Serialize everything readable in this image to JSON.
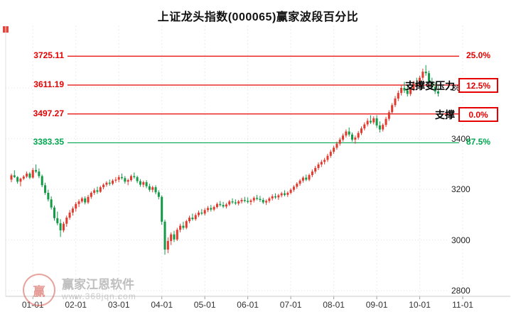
{
  "title": "上证龙头指数(000065)赢家波段百分比",
  "watermark": {
    "brand": "赢家江恩软件",
    "url": "www.368jqn.com",
    "seal_char": "赢"
  },
  "chart_data": {
    "type": "candlestick",
    "title": "上证龙头指数(000065)赢家波段百分比",
    "x_ticks": [
      "01-01",
      "02-01",
      "03-01",
      "04-01",
      "05-01",
      "06-01",
      "07-01",
      "08-01",
      "09-01",
      "10-01",
      "11-01"
    ],
    "y_ticks": [
      3600,
      3400,
      3200,
      3000,
      2800
    ],
    "ylim": [
      2800,
      3760
    ],
    "grid": true,
    "colors": {
      "up": "#e23a2e",
      "down": "#149a47",
      "level_red": "#e60000",
      "level_green": "#00a84f"
    },
    "levels": [
      {
        "price": 3725.11,
        "price_label": "3725.11",
        "percent": "25.0%",
        "color": "#e60000",
        "boxed": false,
        "tag": ""
      },
      {
        "price": 3611.19,
        "price_label": "3611.19",
        "percent": "12.5%",
        "color": "#e60000",
        "boxed": true,
        "tag": "支撑变压力"
      },
      {
        "price": 3497.27,
        "price_label": "3497.27",
        "percent": "0.0%",
        "color": "#e60000",
        "boxed": true,
        "tag": "支撑"
      },
      {
        "price": 3383.35,
        "price_label": "3383.35",
        "percent": "87.5%",
        "color": "#00a84f",
        "boxed": false,
        "tag": ""
      }
    ],
    "first_tick_candle_index": 7,
    "candles_per_month": 14,
    "candles": [
      [
        3238,
        3262,
        3228,
        3255
      ],
      [
        3255,
        3275,
        3245,
        3248
      ],
      [
        3248,
        3252,
        3222,
        3230
      ],
      [
        3230,
        3246,
        3212,
        3242
      ],
      [
        3242,
        3256,
        3236,
        3250
      ],
      [
        3250,
        3270,
        3244,
        3262
      ],
      [
        3262,
        3268,
        3240,
        3246
      ],
      [
        3246,
        3284,
        3242,
        3276
      ],
      [
        3276,
        3298,
        3264,
        3270
      ],
      [
        3270,
        3282,
        3244,
        3252
      ],
      [
        3252,
        3258,
        3208,
        3216
      ],
      [
        3216,
        3226,
        3178,
        3186
      ],
      [
        3186,
        3198,
        3152,
        3160
      ],
      [
        3160,
        3172,
        3120,
        3128
      ],
      [
        3128,
        3136,
        3076,
        3086
      ],
      [
        3086,
        3112,
        3058,
        3066
      ],
      [
        3066,
        3082,
        3012,
        3038
      ],
      [
        3038,
        3072,
        3030,
        3064
      ],
      [
        3064,
        3096,
        3052,
        3088
      ],
      [
        3088,
        3118,
        3080,
        3108
      ],
      [
        3108,
        3132,
        3096,
        3124
      ],
      [
        3124,
        3150,
        3112,
        3142
      ],
      [
        3142,
        3160,
        3130,
        3152
      ],
      [
        3152,
        3170,
        3146,
        3164
      ],
      [
        3164,
        3172,
        3140,
        3148
      ],
      [
        3148,
        3178,
        3142,
        3170
      ],
      [
        3170,
        3192,
        3162,
        3186
      ],
      [
        3186,
        3204,
        3178,
        3196
      ],
      [
        3196,
        3210,
        3182,
        3190
      ],
      [
        3190,
        3214,
        3186,
        3208
      ],
      [
        3208,
        3224,
        3200,
        3218
      ],
      [
        3218,
        3232,
        3210,
        3226
      ],
      [
        3226,
        3238,
        3214,
        3222
      ],
      [
        3222,
        3240,
        3216,
        3234
      ],
      [
        3234,
        3248,
        3226,
        3238
      ],
      [
        3238,
        3256,
        3228,
        3248
      ],
      [
        3248,
        3262,
        3238,
        3244
      ],
      [
        3244,
        3252,
        3222,
        3230
      ],
      [
        3230,
        3242,
        3216,
        3236
      ],
      [
        3236,
        3258,
        3230,
        3252
      ],
      [
        3252,
        3266,
        3242,
        3248
      ],
      [
        3248,
        3254,
        3224,
        3232
      ],
      [
        3232,
        3240,
        3210,
        3218
      ],
      [
        3218,
        3234,
        3208,
        3228
      ],
      [
        3228,
        3236,
        3204,
        3212
      ],
      [
        3212,
        3222,
        3190,
        3198
      ],
      [
        3198,
        3214,
        3188,
        3208
      ],
      [
        3208,
        3216,
        3180,
        3188
      ],
      [
        3188,
        3196,
        3160,
        3170
      ],
      [
        3170,
        3176,
        3060,
        3072
      ],
      [
        3072,
        3080,
        2942,
        2962
      ],
      [
        2962,
        3010,
        2948,
        2996
      ],
      [
        2996,
        3030,
        2980,
        3022
      ],
      [
        3022,
        3036,
        2992,
        3002
      ],
      [
        3002,
        3048,
        2996,
        3040
      ],
      [
        3040,
        3064,
        3030,
        3056
      ],
      [
        3056,
        3072,
        3040,
        3048
      ],
      [
        3048,
        3080,
        3042,
        3074
      ],
      [
        3074,
        3096,
        3066,
        3088
      ],
      [
        3088,
        3104,
        3076,
        3082
      ],
      [
        3082,
        3106,
        3076,
        3098
      ],
      [
        3098,
        3116,
        3090,
        3108
      ],
      [
        3108,
        3122,
        3098,
        3104
      ],
      [
        3104,
        3126,
        3096,
        3118
      ],
      [
        3118,
        3134,
        3110,
        3126
      ],
      [
        3126,
        3138,
        3112,
        3120
      ],
      [
        3120,
        3136,
        3114,
        3130
      ],
      [
        3130,
        3148,
        3124,
        3142
      ],
      [
        3142,
        3154,
        3132,
        3138
      ],
      [
        3138,
        3150,
        3126,
        3132
      ],
      [
        3132,
        3146,
        3124,
        3140
      ],
      [
        3140,
        3158,
        3134,
        3152
      ],
      [
        3152,
        3164,
        3142,
        3148
      ],
      [
        3148,
        3160,
        3138,
        3144
      ],
      [
        3144,
        3158,
        3136,
        3152
      ],
      [
        3152,
        3166,
        3144,
        3158
      ],
      [
        3158,
        3170,
        3148,
        3154
      ],
      [
        3154,
        3168,
        3144,
        3150
      ],
      [
        3150,
        3162,
        3138,
        3156
      ],
      [
        3156,
        3172,
        3148,
        3166
      ],
      [
        3166,
        3178,
        3156,
        3162
      ],
      [
        3162,
        3174,
        3150,
        3158
      ],
      [
        3158,
        3166,
        3142,
        3148
      ],
      [
        3148,
        3160,
        3138,
        3154
      ],
      [
        3154,
        3170,
        3146,
        3164
      ],
      [
        3164,
        3180,
        3156,
        3172
      ],
      [
        3172,
        3184,
        3162,
        3168
      ],
      [
        3168,
        3182,
        3158,
        3176
      ],
      [
        3176,
        3190,
        3168,
        3184
      ],
      [
        3184,
        3196,
        3172,
        3178
      ],
      [
        3178,
        3192,
        3170,
        3186
      ],
      [
        3186,
        3204,
        3180,
        3198
      ],
      [
        3198,
        3216,
        3190,
        3210
      ],
      [
        3210,
        3228,
        3202,
        3222
      ],
      [
        3222,
        3240,
        3214,
        3234
      ],
      [
        3234,
        3252,
        3226,
        3246
      ],
      [
        3246,
        3258,
        3232,
        3238
      ],
      [
        3238,
        3262,
        3232,
        3256
      ],
      [
        3256,
        3278,
        3248,
        3270
      ],
      [
        3270,
        3292,
        3262,
        3284
      ],
      [
        3284,
        3306,
        3276,
        3298
      ],
      [
        3298,
        3316,
        3288,
        3308
      ],
      [
        3308,
        3324,
        3298,
        3316
      ],
      [
        3316,
        3340,
        3308,
        3332
      ],
      [
        3332,
        3356,
        3324,
        3348
      ],
      [
        3348,
        3372,
        3340,
        3364
      ],
      [
        3364,
        3388,
        3356,
        3380
      ],
      [
        3380,
        3404,
        3372,
        3396
      ],
      [
        3396,
        3420,
        3388,
        3412
      ],
      [
        3412,
        3436,
        3404,
        3428
      ],
      [
        3428,
        3444,
        3408,
        3416
      ],
      [
        3416,
        3424,
        3388,
        3396
      ],
      [
        3396,
        3412,
        3380,
        3404
      ],
      [
        3404,
        3430,
        3396,
        3422
      ],
      [
        3422,
        3448,
        3414,
        3440
      ],
      [
        3440,
        3464,
        3432,
        3456
      ],
      [
        3456,
        3480,
        3448,
        3470
      ],
      [
        3470,
        3492,
        3458,
        3464
      ],
      [
        3464,
        3488,
        3456,
        3480
      ],
      [
        3480,
        3492,
        3442,
        3452
      ],
      [
        3452,
        3468,
        3424,
        3436
      ],
      [
        3436,
        3460,
        3428,
        3454
      ],
      [
        3454,
        3486,
        3446,
        3478
      ],
      [
        3478,
        3512,
        3470,
        3504
      ],
      [
        3504,
        3540,
        3496,
        3532
      ],
      [
        3532,
        3568,
        3524,
        3558
      ],
      [
        3558,
        3590,
        3548,
        3580
      ],
      [
        3580,
        3612,
        3570,
        3600
      ],
      [
        3600,
        3624,
        3580,
        3590
      ],
      [
        3590,
        3610,
        3566,
        3576
      ],
      [
        3576,
        3604,
        3568,
        3596
      ],
      [
        3596,
        3628,
        3588,
        3618
      ],
      [
        3618,
        3640,
        3606,
        3612
      ],
      [
        3612,
        3648,
        3604,
        3640
      ],
      [
        3640,
        3676,
        3630,
        3664
      ],
      [
        3664,
        3690,
        3648,
        3658
      ],
      [
        3658,
        3668,
        3612,
        3624
      ],
      [
        3624,
        3640,
        3592,
        3604
      ],
      [
        3604,
        3622,
        3576,
        3586
      ],
      [
        3586,
        3608,
        3566,
        3578
      ]
    ]
  }
}
